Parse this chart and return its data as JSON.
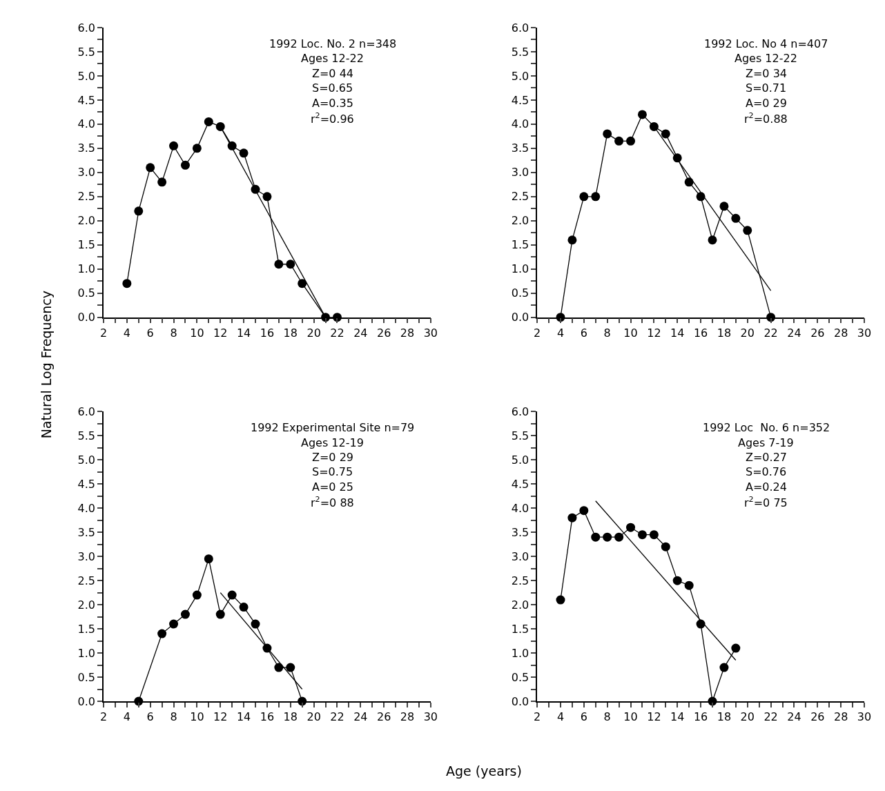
{
  "chart_data": [
    {
      "type": "line",
      "ylabel": "Natural Log Frequency",
      "xlim": [
        2,
        30
      ],
      "ylim": [
        0,
        6.0
      ],
      "xticks": [
        2,
        {
          "value": 3,
          "label": null
        },
        4,
        {
          "value": 5,
          "label": null
        },
        6,
        {
          "value": 7,
          "label": null
        },
        8,
        {
          "value": 9,
          "label": null
        },
        10,
        {
          "value": 11,
          "label": null
        },
        12,
        {
          "value": 13,
          "label": null
        },
        14,
        {
          "value": 15,
          "label": null
        },
        16,
        {
          "value": 17,
          "label": null
        },
        18,
        {
          "value": 19,
          "label": null
        },
        20,
        {
          "value": 21,
          "label": null
        },
        22,
        {
          "value": 23,
          "label": null
        },
        24,
        {
          "value": 25,
          "label": null
        },
        26,
        {
          "value": 27,
          "label": null
        },
        28,
        {
          "value": 29,
          "label": null
        },
        30
      ],
      "yticks": [
        {
          "value": 0,
          "label": "0.0"
        },
        {
          "value": 0.25,
          "label": null
        },
        {
          "value": 0.5,
          "label": "0.5"
        },
        {
          "value": 0.75,
          "label": null
        },
        {
          "value": 1.0,
          "label": "1.0"
        },
        {
          "value": 1.25,
          "label": null
        },
        {
          "value": 1.5,
          "label": "1.5"
        },
        {
          "value": 1.75,
          "label": null
        },
        {
          "value": 2.0,
          "label": "2.0"
        },
        {
          "value": 2.25,
          "label": null
        },
        {
          "value": 2.5,
          "label": "2.5"
        },
        {
          "value": 2.75,
          "label": null
        },
        {
          "value": 3.0,
          "label": "3.0"
        },
        {
          "value": 3.25,
          "label": null
        },
        {
          "value": 3.5,
          "label": "3.5"
        },
        {
          "value": 3.75,
          "label": null
        },
        {
          "value": 4.0,
          "label": "4.0"
        },
        {
          "value": 4.25,
          "label": null
        },
        {
          "value": 4.5,
          "label": "4.5"
        },
        {
          "value": 4.75,
          "label": null
        },
        {
          "value": 5.0,
          "label": "5.0"
        },
        {
          "value": 5.25,
          "label": null
        },
        {
          "value": 5.5,
          "label": "5.5"
        },
        {
          "value": 5.75,
          "label": null
        },
        {
          "value": 6.0,
          "label": "6.0"
        }
      ],
      "grid": false,
      "annotations": [
        "1992 Loc. No. 2 n=348",
        "Ages 12-22",
        "Z=0 44",
        "S=0.65",
        "A=0.35",
        "r$^{2}$=0.96"
      ],
      "series": [
        {
          "color": "#000000",
          "marker": "circle",
          "x": [
            4,
            5,
            6,
            7,
            8,
            9,
            10,
            11,
            12,
            13,
            14,
            15,
            16,
            17,
            18,
            19,
            21,
            22
          ],
          "values": [
            0.7,
            2.2,
            3.1,
            2.8,
            3.55,
            3.15,
            3.5,
            4.05,
            3.95,
            3.55,
            3.4,
            2.65,
            2.5,
            1.1,
            1.1,
            0.7,
            0.0,
            0.0
          ]
        },
        {
          "color": "#000000",
          "marker": "none",
          "x": [
            12,
            21
          ],
          "values": [
            3.95,
            0.0
          ]
        }
      ]
    },
    {
      "type": "line",
      "xlim": [
        2,
        30
      ],
      "ylim": [
        0,
        6.0
      ],
      "xticks": [
        2,
        {
          "value": 3,
          "label": null
        },
        4,
        {
          "value": 5,
          "label": null
        },
        6,
        {
          "value": 7,
          "label": null
        },
        8,
        {
          "value": 9,
          "label": null
        },
        10,
        {
          "value": 11,
          "label": null
        },
        12,
        {
          "value": 13,
          "label": null
        },
        14,
        {
          "value": 15,
          "label": null
        },
        16,
        {
          "value": 17,
          "label": null
        },
        18,
        {
          "value": 19,
          "label": null
        },
        20,
        {
          "value": 21,
          "label": null
        },
        22,
        {
          "value": 23,
          "label": null
        },
        24,
        {
          "value": 25,
          "label": null
        },
        26,
        {
          "value": 27,
          "label": null
        },
        28,
        {
          "value": 29,
          "label": null
        },
        30
      ],
      "yticks": [
        {
          "value": 0,
          "label": "0.0"
        },
        {
          "value": 0.25,
          "label": null
        },
        {
          "value": 0.5,
          "label": "0.5"
        },
        {
          "value": 0.75,
          "label": null
        },
        {
          "value": 1.0,
          "label": "1.0"
        },
        {
          "value": 1.25,
          "label": null
        },
        {
          "value": 1.5,
          "label": "1.5"
        },
        {
          "value": 1.75,
          "label": null
        },
        {
          "value": 2.0,
          "label": "2.0"
        },
        {
          "value": 2.25,
          "label": null
        },
        {
          "value": 2.5,
          "label": "2.5"
        },
        {
          "value": 2.75,
          "label": null
        },
        {
          "value": 3.0,
          "label": "3.0"
        },
        {
          "value": 3.25,
          "label": null
        },
        {
          "value": 3.5,
          "label": "3.5"
        },
        {
          "value": 3.75,
          "label": null
        },
        {
          "value": 4.0,
          "label": "4.0"
        },
        {
          "value": 4.25,
          "label": null
        },
        {
          "value": 4.5,
          "label": "4.5"
        },
        {
          "value": 4.75,
          "label": null
        },
        {
          "value": 5.0,
          "label": "5.0"
        },
        {
          "value": 5.25,
          "label": null
        },
        {
          "value": 5.5,
          "label": "5.5"
        },
        {
          "value": 5.75,
          "label": null
        },
        {
          "value": 6.0,
          "label": "6.0"
        }
      ],
      "grid": false,
      "annotations": [
        "1992 Loc. No 4 n=407",
        "Ages 12-22",
        "Z=0 34",
        "S=0.71",
        "A=0 29",
        "r$^{2}$=0.88"
      ],
      "series": [
        {
          "color": "#000000",
          "marker": "circle",
          "x": [
            4,
            5,
            6,
            7,
            8,
            9,
            10,
            11,
            12,
            13,
            14,
            15,
            16,
            17,
            18,
            19,
            20,
            22
          ],
          "values": [
            0.0,
            1.6,
            2.5,
            2.5,
            3.8,
            3.65,
            3.65,
            4.2,
            3.95,
            3.8,
            3.3,
            2.8,
            2.5,
            1.6,
            2.3,
            2.05,
            1.8,
            0.0
          ]
        },
        {
          "color": "#000000",
          "marker": "none",
          "x": [
            12,
            22
          ],
          "values": [
            3.95,
            0.55
          ]
        }
      ]
    },
    {
      "type": "line",
      "xlabel": "Age (years)",
      "xlim": [
        2,
        30
      ],
      "ylim": [
        0,
        6.0
      ],
      "xticks": [
        2,
        {
          "value": 3,
          "label": null
        },
        4,
        {
          "value": 5,
          "label": null
        },
        6,
        {
          "value": 7,
          "label": null
        },
        8,
        {
          "value": 9,
          "label": null
        },
        10,
        {
          "value": 11,
          "label": null
        },
        12,
        {
          "value": 13,
          "label": null
        },
        14,
        {
          "value": 15,
          "label": null
        },
        16,
        {
          "value": 17,
          "label": null
        },
        18,
        {
          "value": 19,
          "label": null
        },
        20,
        {
          "value": 21,
          "label": null
        },
        22,
        {
          "value": 23,
          "label": null
        },
        24,
        {
          "value": 25,
          "label": null
        },
        26,
        {
          "value": 27,
          "label": null
        },
        28,
        {
          "value": 29,
          "label": null
        },
        30
      ],
      "yticks": [
        {
          "value": 0,
          "label": "0.0"
        },
        {
          "value": 0.25,
          "label": null
        },
        {
          "value": 0.5,
          "label": "0.5"
        },
        {
          "value": 0.75,
          "label": null
        },
        {
          "value": 1.0,
          "label": "1.0"
        },
        {
          "value": 1.25,
          "label": null
        },
        {
          "value": 1.5,
          "label": "1.5"
        },
        {
          "value": 1.75,
          "label": null
        },
        {
          "value": 2.0,
          "label": "2.0"
        },
        {
          "value": 2.25,
          "label": null
        },
        {
          "value": 2.5,
          "label": "2.5"
        },
        {
          "value": 2.75,
          "label": null
        },
        {
          "value": 3.0,
          "label": "3.0"
        },
        {
          "value": 3.25,
          "label": null
        },
        {
          "value": 3.5,
          "label": "3.5"
        },
        {
          "value": 3.75,
          "label": null
        },
        {
          "value": 4.0,
          "label": "4.0"
        },
        {
          "value": 4.25,
          "label": null
        },
        {
          "value": 4.5,
          "label": "4.5"
        },
        {
          "value": 4.75,
          "label": null
        },
        {
          "value": 5.0,
          "label": "5.0"
        },
        {
          "value": 5.25,
          "label": null
        },
        {
          "value": 5.5,
          "label": "5.5"
        },
        {
          "value": 5.75,
          "label": null
        },
        {
          "value": 6.0,
          "label": "6.0"
        }
      ],
      "grid": false,
      "annotations": [
        "1992 Experimental Site n=79",
        "Ages 12-19",
        "Z=0 29",
        "S=0.75",
        "A=0 25",
        "r$^{2}$=0 88"
      ],
      "series": [
        {
          "color": "#000000",
          "marker": "circle",
          "x": [
            5,
            7,
            8,
            9,
            10,
            11,
            12,
            13,
            14,
            15,
            16,
            17,
            18,
            19
          ],
          "values": [
            0.0,
            1.4,
            1.6,
            1.8,
            2.2,
            2.95,
            1.8,
            2.2,
            1.95,
            1.6,
            1.1,
            0.7,
            0.7,
            0.0
          ]
        },
        {
          "color": "#000000",
          "marker": "none",
          "x": [
            12,
            19
          ],
          "values": [
            2.25,
            0.25
          ]
        }
      ]
    },
    {
      "type": "line",
      "xlim": [
        2,
        30
      ],
      "ylim": [
        0,
        6.0
      ],
      "xticks": [
        2,
        {
          "value": 3,
          "label": null
        },
        4,
        {
          "value": 5,
          "label": null
        },
        6,
        {
          "value": 7,
          "label": null
        },
        8,
        {
          "value": 9,
          "label": null
        },
        10,
        {
          "value": 11,
          "label": null
        },
        12,
        {
          "value": 13,
          "label": null
        },
        14,
        {
          "value": 15,
          "label": null
        },
        16,
        {
          "value": 17,
          "label": null
        },
        18,
        {
          "value": 19,
          "label": null
        },
        20,
        {
          "value": 21,
          "label": null
        },
        22,
        {
          "value": 23,
          "label": null
        },
        24,
        {
          "value": 25,
          "label": null
        },
        26,
        {
          "value": 27,
          "label": null
        },
        28,
        {
          "value": 29,
          "label": null
        },
        30
      ],
      "yticks": [
        {
          "value": 0,
          "label": "0.0"
        },
        {
          "value": 0.25,
          "label": null
        },
        {
          "value": 0.5,
          "label": "0.5"
        },
        {
          "value": 0.75,
          "label": null
        },
        {
          "value": 1.0,
          "label": "1.0"
        },
        {
          "value": 1.25,
          "label": null
        },
        {
          "value": 1.5,
          "label": "1.5"
        },
        {
          "value": 1.75,
          "label": null
        },
        {
          "value": 2.0,
          "label": "2.0"
        },
        {
          "value": 2.25,
          "label": null
        },
        {
          "value": 2.5,
          "label": "2.5"
        },
        {
          "value": 2.75,
          "label": null
        },
        {
          "value": 3.0,
          "label": "3.0"
        },
        {
          "value": 3.25,
          "label": null
        },
        {
          "value": 3.5,
          "label": "3.5"
        },
        {
          "value": 3.75,
          "label": null
        },
        {
          "value": 4.0,
          "label": "4.0"
        },
        {
          "value": 4.25,
          "label": null
        },
        {
          "value": 4.5,
          "label": "4.5"
        },
        {
          "value": 4.75,
          "label": null
        },
        {
          "value": 5.0,
          "label": "5.0"
        },
        {
          "value": 5.25,
          "label": null
        },
        {
          "value": 5.5,
          "label": "5.5"
        },
        {
          "value": 5.75,
          "label": null
        },
        {
          "value": 6.0,
          "label": "6.0"
        }
      ],
      "grid": false,
      "annotations": [
        "1992 Loc  No. 6 n=352",
        "Ages 7-19",
        "Z=0.27",
        "S=0.76",
        "A=0.24",
        "r$^{2}$=0 75"
      ],
      "series": [
        {
          "color": "#000000",
          "marker": "circle",
          "x": [
            4,
            5,
            6,
            7,
            8,
            9,
            10,
            11,
            12,
            13,
            14,
            15,
            16,
            17,
            18,
            19
          ],
          "values": [
            2.1,
            3.8,
            3.95,
            3.4,
            3.4,
            3.4,
            3.6,
            3.45,
            3.45,
            3.2,
            2.5,
            2.4,
            1.6,
            0.0,
            0.7,
            1.1
          ]
        },
        {
          "color": "#000000",
          "marker": "none",
          "x": [
            7,
            19
          ],
          "values": [
            4.15,
            0.85
          ]
        }
      ]
    }
  ]
}
